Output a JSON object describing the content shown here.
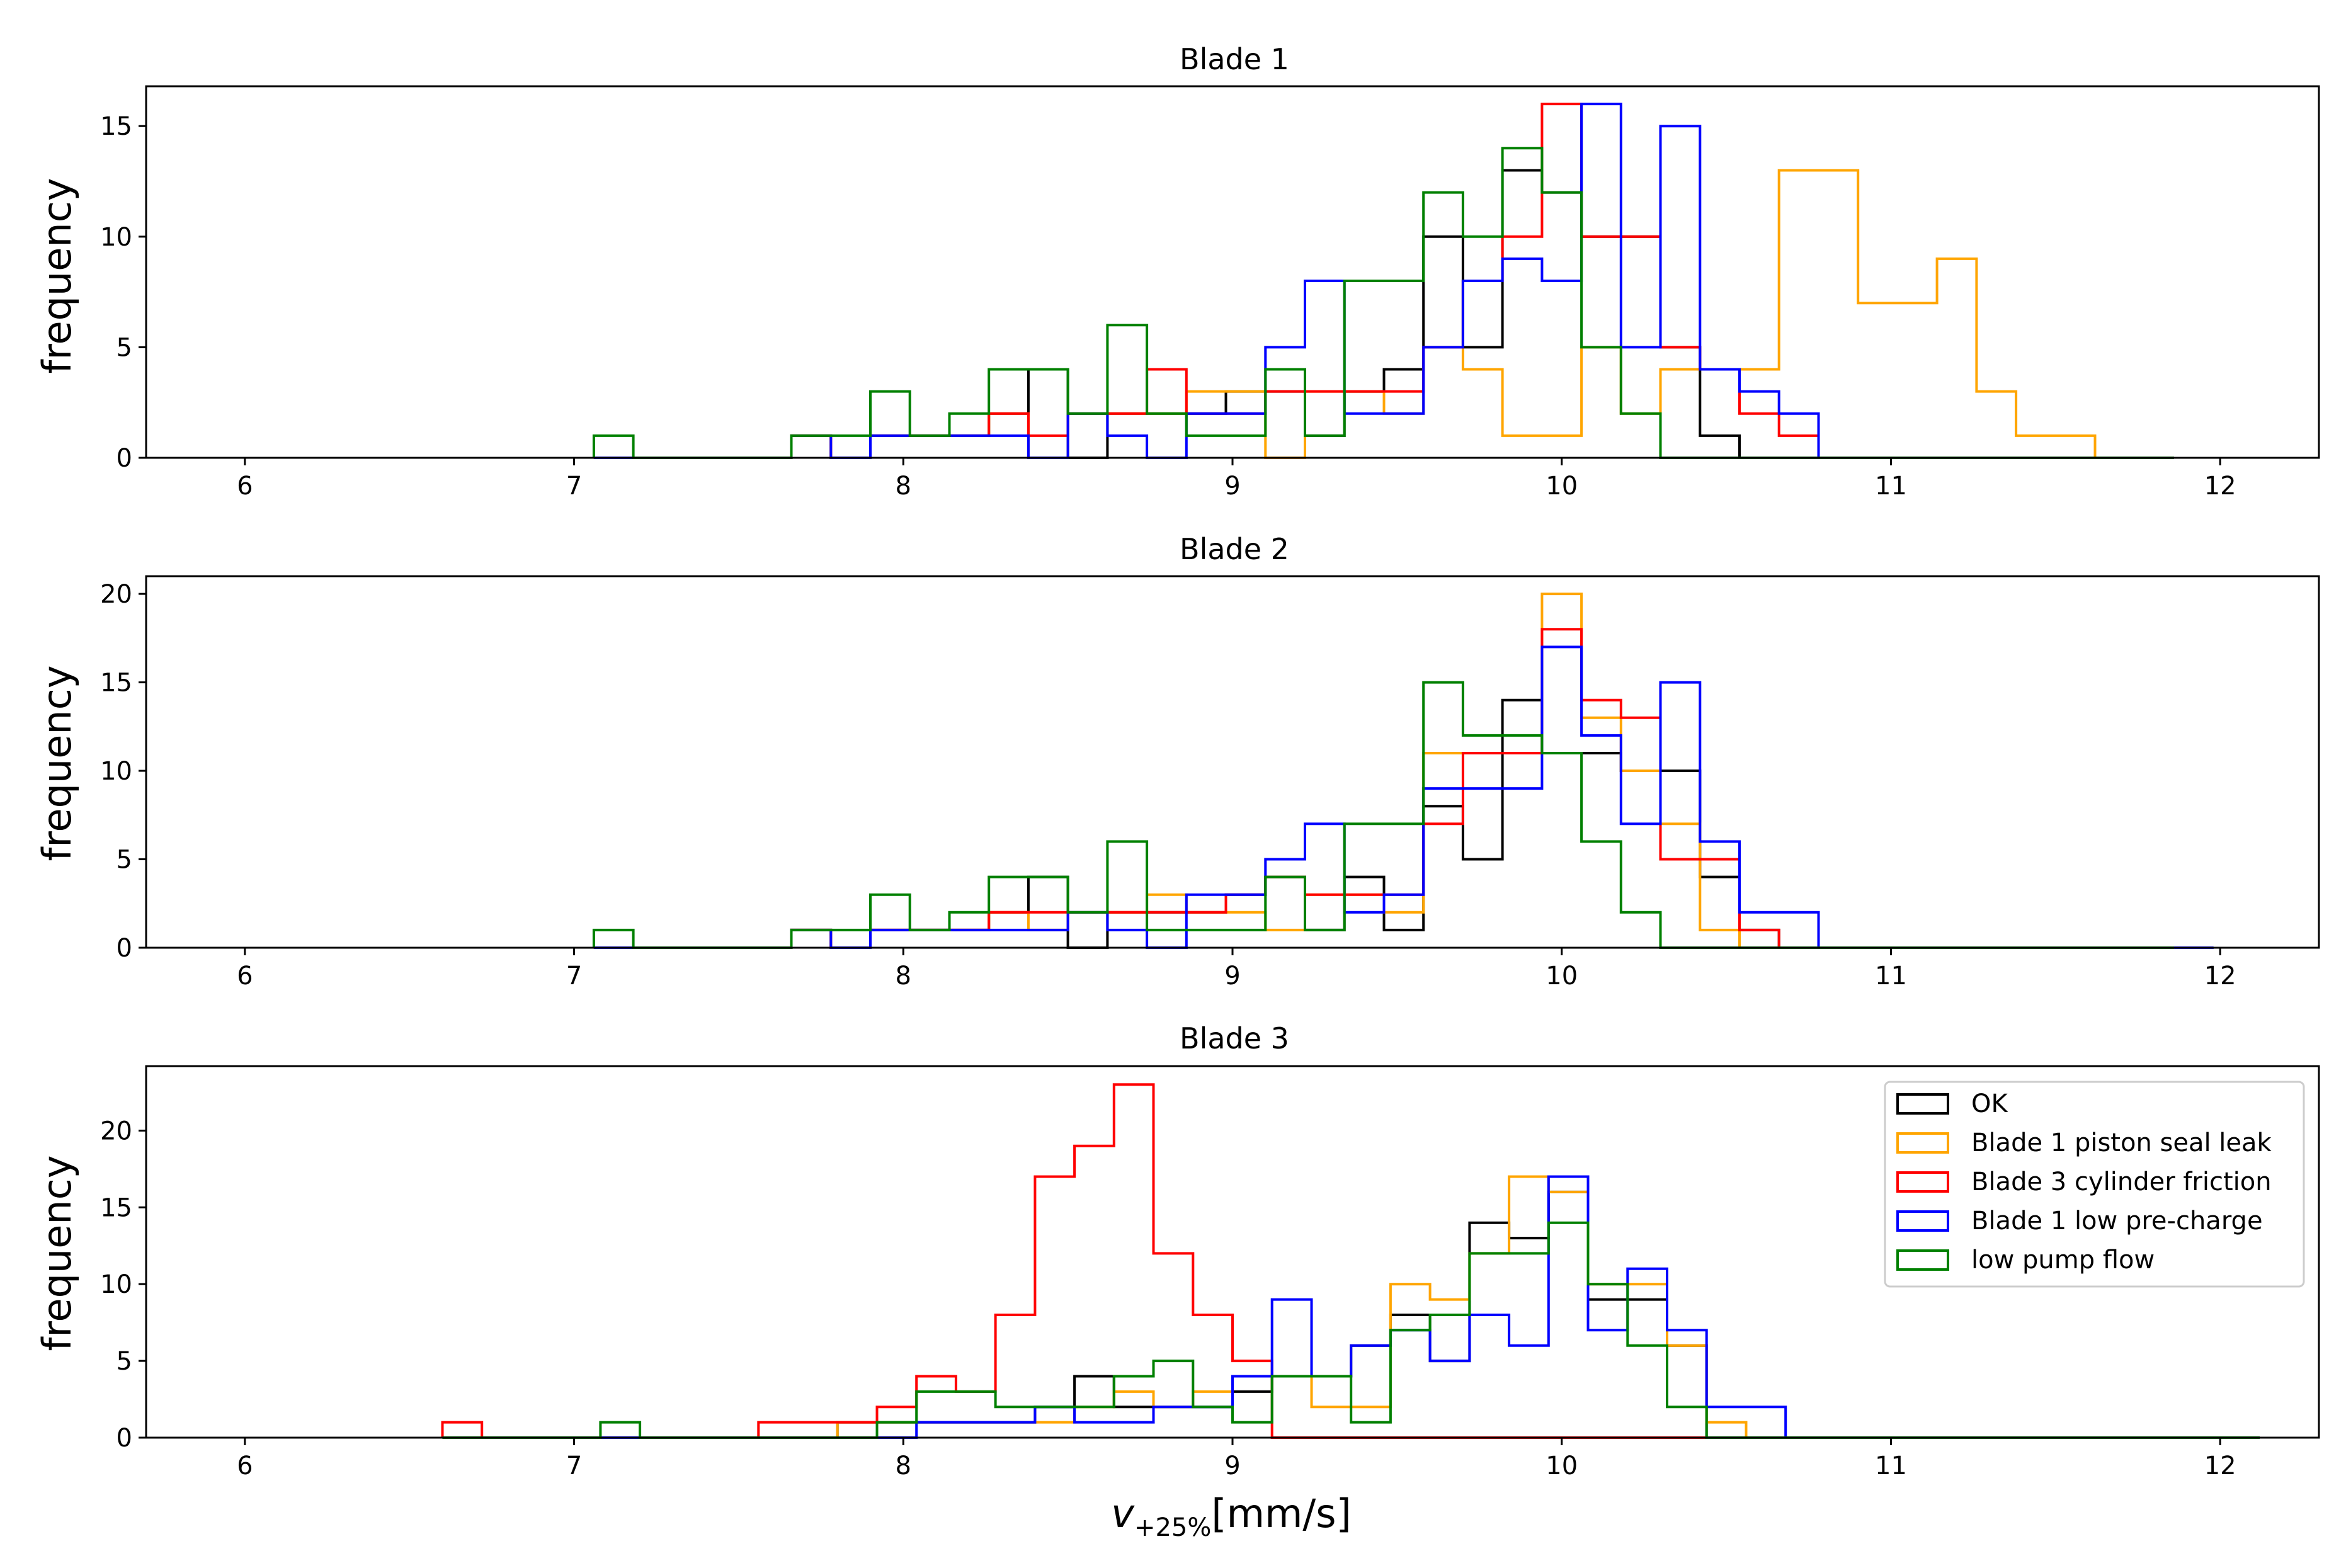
{
  "chart_data": [
    {
      "type": "histogram",
      "title": "Blade 1",
      "ylabel": "frequency",
      "xlim": [
        5.7,
        12.3
      ],
      "ylim": [
        0,
        16.8
      ],
      "xticks": [
        6,
        7,
        8,
        9,
        10,
        11,
        12
      ],
      "yticks": [
        0,
        5,
        10,
        15
      ],
      "bin_start": 7.06,
      "bin_width": 0.12,
      "series": [
        {
          "name": "OK",
          "color": "#000000",
          "values": [
            0,
            0,
            0,
            0,
            0,
            1,
            0,
            1,
            1,
            1,
            2,
            4,
            0,
            2,
            2,
            2,
            3,
            3,
            1,
            3,
            4,
            10,
            5,
            13,
            12,
            10,
            10,
            5,
            1,
            0,
            0,
            0,
            0,
            0,
            0,
            0,
            0,
            0,
            0,
            0
          ]
        },
        {
          "name": "Blade 1 piston seal leak",
          "color": "#ffa500",
          "values": [
            0,
            0,
            0,
            0,
            0,
            1,
            0,
            1,
            1,
            1,
            2,
            0,
            2,
            2,
            2,
            3,
            3,
            0,
            3,
            3,
            2,
            5,
            4,
            1,
            1,
            5,
            2,
            4,
            4,
            4,
            13,
            13,
            7,
            7,
            9,
            3,
            1,
            1,
            0,
            0
          ]
        },
        {
          "name": "Blade 3 cylinder friction",
          "color": "#ff0000",
          "values": [
            0,
            0,
            0,
            0,
            0,
            1,
            0,
            1,
            1,
            1,
            2,
            1,
            2,
            2,
            4,
            2,
            2,
            3,
            3,
            3,
            3,
            5,
            8,
            10,
            16,
            10,
            10,
            5,
            4,
            2,
            1,
            0,
            0,
            0,
            0,
            0,
            0,
            0,
            0,
            0
          ]
        },
        {
          "name": "Blade 1 low pre-charge",
          "color": "#0000ff",
          "values": [
            0,
            0,
            0,
            0,
            0,
            1,
            0,
            1,
            1,
            1,
            1,
            0,
            2,
            1,
            0,
            2,
            2,
            5,
            8,
            2,
            2,
            5,
            8,
            9,
            8,
            16,
            5,
            15,
            4,
            3,
            2,
            0,
            0,
            0,
            0,
            0,
            0,
            0,
            0,
            0
          ]
        },
        {
          "name": "low pump flow",
          "color": "#008000",
          "values": [
            1,
            0,
            0,
            0,
            0,
            1,
            1,
            3,
            1,
            2,
            4,
            4,
            2,
            6,
            2,
            1,
            1,
            4,
            1,
            8,
            8,
            12,
            10,
            14,
            12,
            5,
            2,
            0,
            0,
            0,
            0,
            0,
            0,
            0,
            0,
            0,
            0,
            0,
            0,
            0
          ]
        }
      ]
    },
    {
      "type": "histogram",
      "title": "Blade 2",
      "ylabel": "frequency",
      "xlim": [
        5.7,
        12.3
      ],
      "ylim": [
        0,
        21
      ],
      "xticks": [
        6,
        7,
        8,
        9,
        10,
        11,
        12
      ],
      "yticks": [
        0,
        5,
        10,
        15,
        20
      ],
      "bin_start": 7.06,
      "bin_width": 0.12,
      "series": [
        {
          "name": "OK",
          "color": "#000000",
          "values": [
            0,
            0,
            0,
            0,
            0,
            1,
            0,
            1,
            1,
            1,
            2,
            4,
            0,
            2,
            2,
            2,
            3,
            4,
            1,
            4,
            1,
            8,
            5,
            14,
            11,
            11,
            10,
            10,
            4,
            1,
            0,
            0,
            0,
            0,
            0,
            0,
            0,
            0,
            0,
            0
          ]
        },
        {
          "name": "Blade 1 piston seal leak",
          "color": "#ffa500",
          "values": [
            0,
            0,
            0,
            0,
            0,
            1,
            0,
            1,
            1,
            1,
            2,
            1,
            2,
            2,
            3,
            2,
            2,
            1,
            3,
            3,
            2,
            11,
            11,
            11,
            20,
            13,
            10,
            7,
            1,
            0,
            0,
            0,
            0,
            0,
            0,
            0,
            0,
            0,
            0,
            0
          ]
        },
        {
          "name": "Blade 3 cylinder friction",
          "color": "#ff0000",
          "values": [
            0,
            0,
            0,
            0,
            0,
            1,
            0,
            1,
            1,
            1,
            2,
            2,
            2,
            2,
            2,
            2,
            3,
            4,
            3,
            3,
            3,
            7,
            11,
            11,
            18,
            14,
            13,
            5,
            5,
            1,
            0,
            0,
            0,
            0,
            0,
            0,
            0,
            0,
            0,
            0
          ]
        },
        {
          "name": "Blade 1 low pre-charge",
          "color": "#0000ff",
          "values": [
            0,
            0,
            0,
            0,
            0,
            1,
            0,
            1,
            1,
            1,
            1,
            1,
            2,
            1,
            0,
            3,
            3,
            5,
            7,
            2,
            3,
            9,
            9,
            9,
            17,
            12,
            7,
            15,
            6,
            2,
            2,
            0,
            0,
            0,
            0,
            0,
            0,
            0,
            0,
            0,
            0
          ]
        },
        {
          "name": "low pump flow",
          "color": "#008000",
          "values": [
            1,
            0,
            0,
            0,
            0,
            1,
            1,
            3,
            1,
            2,
            4,
            4,
            2,
            6,
            1,
            1,
            1,
            4,
            1,
            7,
            7,
            15,
            12,
            12,
            11,
            6,
            2,
            0,
            0,
            0,
            0,
            0,
            0,
            0,
            0,
            0,
            0,
            0,
            0,
            0
          ]
        }
      ]
    },
    {
      "type": "histogram",
      "title": "Blade 3",
      "ylabel": "frequency",
      "xlabel_main": "v",
      "xlabel_sub": "+25%",
      "xlabel_unit": "[mm/s]",
      "xlim": [
        5.7,
        12.3
      ],
      "ylim": [
        0,
        24.2
      ],
      "xticks": [
        6,
        7,
        8,
        9,
        10,
        11,
        12
      ],
      "yticks": [
        0,
        5,
        10,
        15,
        20
      ],
      "bin_start": 6.6,
      "bin_width": 0.12,
      "legend_position": "upper right",
      "series": [
        {
          "name": "OK",
          "color": "#000000",
          "values": [
            0,
            0,
            0,
            0,
            0,
            0,
            0,
            0,
            0,
            0,
            1,
            1,
            1,
            1,
            1,
            2,
            4,
            2,
            2,
            2,
            3,
            4,
            4,
            6,
            8,
            5,
            14,
            13,
            16,
            9,
            9,
            6,
            0,
            0,
            0,
            0,
            0,
            0,
            0,
            0,
            0,
            0,
            0,
            0,
            0,
            0
          ]
        },
        {
          "name": "Blade 1 piston seal leak",
          "color": "#ffa500",
          "values": [
            0,
            0,
            0,
            0,
            0,
            0,
            0,
            0,
            0,
            0,
            1,
            1,
            1,
            1,
            1,
            1,
            2,
            3,
            2,
            3,
            4,
            4,
            2,
            2,
            10,
            9,
            12,
            17,
            16,
            10,
            10,
            6,
            1,
            0,
            0,
            0,
            0,
            0,
            0,
            0,
            0,
            0,
            0,
            0,
            0,
            0
          ]
        },
        {
          "name": "Blade 3 cylinder friction",
          "color": "#ff0000",
          "values": [
            1,
            0,
            0,
            0,
            0,
            0,
            0,
            0,
            1,
            1,
            1,
            2,
            4,
            3,
            8,
            17,
            19,
            23,
            12,
            8,
            5,
            0,
            0,
            0,
            0,
            0,
            0,
            0,
            0,
            0,
            0,
            0,
            0,
            0,
            0,
            0,
            0,
            0,
            0,
            0,
            0,
            0,
            0,
            0,
            0,
            0
          ]
        },
        {
          "name": "Blade 1 low pre-charge",
          "color": "#0000ff",
          "values": [
            0,
            0,
            0,
            0,
            0,
            0,
            0,
            0,
            0,
            0,
            0,
            0,
            1,
            1,
            1,
            2,
            1,
            1,
            2,
            2,
            4,
            9,
            4,
            6,
            7,
            5,
            8,
            6,
            17,
            7,
            11,
            7,
            2,
            2,
            0,
            0,
            0,
            0,
            0,
            0,
            0,
            0,
            0,
            0,
            0,
            0
          ]
        },
        {
          "name": "low pump flow",
          "color": "#008000",
          "values": [
            0,
            0,
            0,
            0,
            1,
            0,
            0,
            0,
            0,
            0,
            0,
            1,
            3,
            3,
            2,
            2,
            2,
            4,
            5,
            2,
            1,
            4,
            4,
            1,
            7,
            8,
            12,
            12,
            14,
            10,
            6,
            2,
            0,
            0,
            0,
            0,
            0,
            0,
            0,
            0,
            0,
            0,
            0,
            0,
            0,
            0
          ]
        }
      ]
    }
  ],
  "legend": {
    "entries": [
      {
        "label": "OK",
        "color": "#000000"
      },
      {
        "label": "Blade 1 piston seal leak",
        "color": "#ffa500"
      },
      {
        "label": "Blade 3 cylinder friction",
        "color": "#ff0000"
      },
      {
        "label": "Blade 1 low pre-charge",
        "color": "#0000ff"
      },
      {
        "label": "low pump flow",
        "color": "#008000"
      }
    ]
  }
}
